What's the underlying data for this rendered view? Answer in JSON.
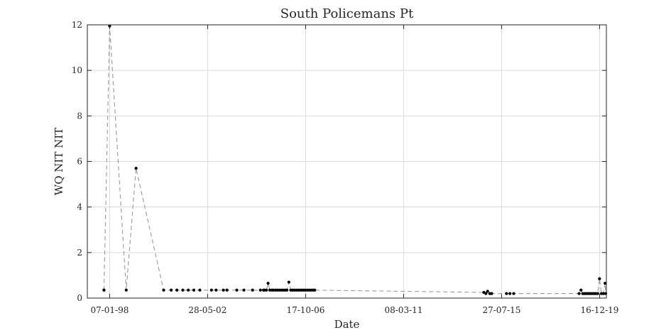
{
  "chart_data": {
    "type": "line",
    "title": "South Policemans Pt",
    "xlabel": "Date",
    "ylabel": "WQ NIT NIT",
    "x_type": "date",
    "xlim": [
      "1997-01-07",
      "2020-04-05"
    ],
    "ylim": [
      0,
      12
    ],
    "x_ticks": [
      "07-01-98",
      "28-05-02",
      "17-10-06",
      "08-03-11",
      "27-07-15",
      "16-12-19"
    ],
    "x_tick_dates": [
      "1998-01-07",
      "2002-05-28",
      "2006-10-17",
      "2011-03-08",
      "2015-07-27",
      "2019-12-16"
    ],
    "y_ticks": [
      0,
      2,
      4,
      6,
      8,
      10,
      12
    ],
    "grid": true,
    "line_style": "dashed",
    "marker": "dot",
    "colors": {
      "line": "#9a9a9a",
      "marker": "#000000",
      "grid": "#dcdcdc",
      "axes": "#262626"
    },
    "series": [
      {
        "x": [
          "1997-10-06",
          "1997-10-06",
          "1998-01-07",
          "1998-10-05",
          "1999-03-15",
          "2000-06-08",
          "2000-10-10",
          "2001-01-10",
          "2001-04-17",
          "2001-07-16",
          "2001-10-15",
          "2002-01-21",
          "2002-07-30",
          "2002-10-14",
          "2003-02-11",
          "2003-04-09",
          "2003-09-18",
          "2004-01-12",
          "2004-06-01",
          "2004-10-08",
          "2004-11-28",
          "2004-12-10",
          "2005-01-15",
          "2005-02-10",
          "2005-03-11",
          "2005-04-15",
          "2005-05-10",
          "2005-06-15",
          "2005-07-15",
          "2005-08-15",
          "2005-09-15",
          "2005-10-15",
          "2005-11-15",
          "2005-12-15",
          "2006-01-16",
          "2006-02-15",
          "2006-03-15",
          "2006-04-13",
          "2006-05-15",
          "2006-06-15",
          "2006-07-15",
          "2006-08-15",
          "2006-09-15",
          "2006-10-13",
          "2006-11-14",
          "2006-12-15",
          "2007-01-15",
          "2007-02-15",
          "2007-03-15",
          "2014-10-10",
          "2014-11-13",
          "2014-12-10",
          "2015-01-15",
          "2015-02-15",
          "2015-10-15",
          "2015-12-10",
          "2016-02-10",
          "2019-01-15",
          "2019-02-15",
          "2019-03-15",
          "2019-04-15",
          "2019-05-15",
          "2019-06-15",
          "2019-07-15",
          "2019-08-15",
          "2019-09-15",
          "2019-10-15",
          "2019-11-15",
          "2019-12-15",
          "2020-01-15",
          "2020-02-15",
          "2020-03-15",
          "2020-03-25"
        ],
        "y": [
          0.35,
          0.35,
          11.95,
          0.35,
          5.7,
          0.35,
          0.35,
          0.35,
          0.35,
          0.35,
          0.35,
          0.35,
          0.35,
          0.35,
          0.35,
          0.35,
          0.35,
          0.35,
          0.35,
          0.35,
          0.35,
          0.35,
          0.35,
          0.65,
          0.35,
          0.35,
          0.35,
          0.35,
          0.35,
          0.35,
          0.35,
          0.35,
          0.35,
          0.35,
          0.7,
          0.35,
          0.35,
          0.35,
          0.35,
          0.35,
          0.35,
          0.35,
          0.35,
          0.35,
          0.35,
          0.35,
          0.35,
          0.35,
          0.35,
          0.25,
          0.2,
          0.3,
          0.2,
          0.2,
          0.2,
          0.2,
          0.2,
          0.2,
          0.35,
          0.2,
          0.2,
          0.2,
          0.2,
          0.2,
          0.2,
          0.2,
          0.2,
          0.2,
          0.85,
          0.2,
          0.2,
          0.65,
          0.2
        ]
      }
    ]
  }
}
